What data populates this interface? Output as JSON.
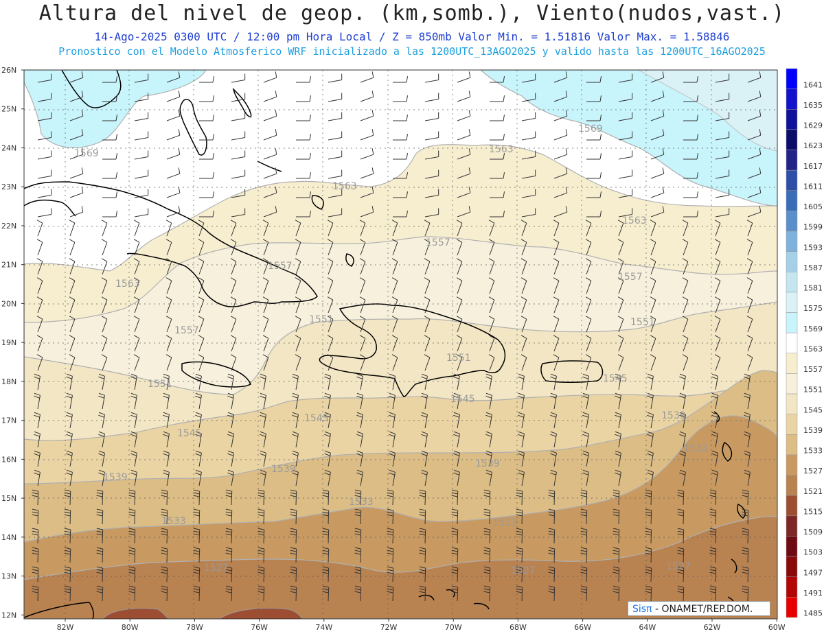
{
  "header": {
    "title": "Altura del nivel de geop. (km,somb.), Viento(nudos,vast.)",
    "subtitle": "14-Ago-2025 0300 UTC / 12:00 pm Hora Local / Z = 850mb   Valor Min. = 1.51816  Valor Max. = 1.58846",
    "model_line": "Pronostico con el Modelo Atmosferico WRF inicializado a las 1200UTC_13AGO2025 y valido hasta las  1200UTC_16AGO2025"
  },
  "axes": {
    "lat_labels": [
      "26N",
      "25N",
      "24N",
      "23N",
      "22N",
      "21N",
      "20N",
      "19N",
      "18N",
      "17N",
      "16N",
      "15N",
      "14N",
      "13N",
      "12N"
    ],
    "lon_labels": [
      "82W",
      "80W",
      "78W",
      "76W",
      "74W",
      "72W",
      "70W",
      "68W",
      "66W",
      "64W",
      "62W",
      "60W"
    ]
  },
  "colorbar": {
    "levels": [
      "1641",
      "1635",
      "1629",
      "1623",
      "1617",
      "1611",
      "1605",
      "1599",
      "1593",
      "1587",
      "1581",
      "1575",
      "1569",
      "1563",
      "1557",
      "1551",
      "1545",
      "1539",
      "1533",
      "1527",
      "1521",
      "1515",
      "1509",
      "1503",
      "1497",
      "1491",
      "1485"
    ],
    "colors": [
      "#0000ff",
      "#1212cc",
      "#10109a",
      "#0c0c6a",
      "#222288",
      "#2e4fa8",
      "#3a6db8",
      "#5b8fcc",
      "#7eb1db",
      "#a5d1e8",
      "#c5e6f0",
      "#daf1f6",
      "#c8f4fb",
      "#ffffff",
      "#f7eed0",
      "#f7f0dd",
      "#f3e6c4",
      "#ead4a4",
      "#dcbd86",
      "#c89a62",
      "#b98251",
      "#9c4d32",
      "#7e2626",
      "#6e0b12",
      "#8a0a0a",
      "#b30505",
      "#e80000"
    ]
  },
  "contour_labels": [
    {
      "text": "1569"
    },
    {
      "text": "1569"
    },
    {
      "text": "1563"
    },
    {
      "text": "1563"
    },
    {
      "text": "1563"
    },
    {
      "text": "1563"
    },
    {
      "text": "1557"
    },
    {
      "text": "1557"
    },
    {
      "text": "1557"
    },
    {
      "text": "1557"
    },
    {
      "text": "1551"
    },
    {
      "text": "1551"
    },
    {
      "text": "1551"
    },
    {
      "text": "1551"
    },
    {
      "text": "1545"
    },
    {
      "text": "1545"
    },
    {
      "text": "1545"
    },
    {
      "text": "1545"
    },
    {
      "text": "1539"
    },
    {
      "text": "1539"
    },
    {
      "text": "1539"
    },
    {
      "text": "1539"
    },
    {
      "text": "1533"
    },
    {
      "text": "1533"
    },
    {
      "text": "1533"
    },
    {
      "text": "1533"
    },
    {
      "text": "1527"
    },
    {
      "text": "1527"
    },
    {
      "text": "1527"
    }
  ],
  "credit": {
    "brand": "Sisπ",
    "text": " - ONAMET/REP.DOM."
  }
}
